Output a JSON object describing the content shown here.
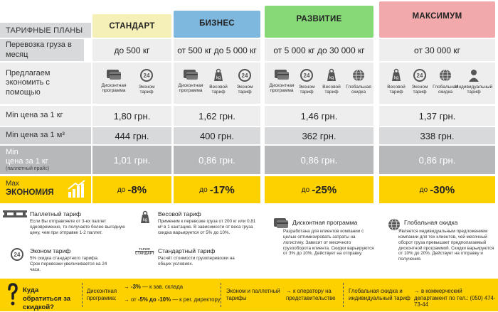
{
  "colors": {
    "standard": "#f5f0b8",
    "business": "#7fb8df",
    "growth": "#87d977",
    "maximum": "#f1a9ab",
    "yellow": "#fdd000"
  },
  "header": {
    "title": "ТАРИФНЫЕ ПЛАНЫ"
  },
  "plans": [
    {
      "name": "СТАНДАРТ",
      "volume": "до 500 кг",
      "kg": "1,80 грн.",
      "m3": "444 грн.",
      "pallet": "1,01 грн.",
      "disc_pre": "до",
      "disc": "-8%"
    },
    {
      "name": "БИЗНЕС",
      "volume": "от 500 кг до 5 000 кг",
      "kg": "1,62 грн.",
      "m3": "400 грн.",
      "pallet": "0,86 грн.",
      "disc_pre": "до",
      "disc": "-17%"
    },
    {
      "name": "РАЗВИТИЕ",
      "volume": "от 5 000 кг до 30 000 кг",
      "kg": "1,46 грн.",
      "m3": "362 грн.",
      "pallet": "0,86 грн.",
      "disc_pre": "до",
      "disc": "-25%"
    },
    {
      "name": "МАКСИМУМ",
      "volume": "от 30 000 кг",
      "kg": "1,37 грн.",
      "m3": "338 грн.",
      "pallet": "0,86 грн.",
      "disc_pre": "до",
      "disc": "-30%"
    }
  ],
  "rows": {
    "volume": "Перевозка груза в месяц",
    "offer": "Предлагаем экономить с помощью",
    "kg": "Min цена за 1 кг",
    "m3": "Min цена за 1 м³",
    "pallet_a": "Min",
    "pallet_b": "цена за 1 кг",
    "pallet_c": "(паллетный прайс)",
    "max_a": "Max",
    "max_b": "ЭКОНОМИЯ"
  },
  "icons": {
    "discount": "Дисконтная программа",
    "econom": "Эконом тариф",
    "weight": "Весовой тариф",
    "global": "Глобальная скидка",
    "individual": "Индивидуальный тариф"
  },
  "legend": {
    "pallet_title": "Паллетный тариф",
    "pallet_text": "Если Вы отправляете от 3-ех паллет одновременно, то получаете более выгодную цену, чем при отправке 1-2 паллет.",
    "econom_title": "Эконом тариф",
    "econom_text": "5% скидка стандартного тарифа. Срок перевозки увеличивается на 24 часа.",
    "weight_title": "Весовой тариф",
    "weight_text": "Применим к перевозке груза от 200 кг или 0,81 м³ в 1 кантацию. В зависимости от веса груза скидка варьируется от 5% до 10%.",
    "standard_title": "Стандартный тариф",
    "standard_text": "Расчёт стоимости грузоперевозки на общих условиях.",
    "standard_badge_a": "ТАРИФ",
    "standard_badge_b": "СТАНДАРТ",
    "discount_title": "Дисконтная программа",
    "discount_text": "Разработана для клиентов компании с целью оптимизировать затраты на логистику. Зависит от месячного грузооборота клиента. Скидки варьируются от 3% до 10%. Действует на отправку.",
    "global_title": "Глобальная скидка",
    "global_text": "Является индивидуальным предложением компании для тех клиентов, чей месячный оборот груза превышает предполагаемый дисконтной программой. Скидки варьируются от 10% до 20%. Действует на отправку и получения."
  },
  "footer": {
    "question": "Куда обратиться за скидкой?",
    "discount_label": "Дисконтная программа:",
    "opt1_val": "-3%",
    "opt1_text": "— к зав. склада",
    "opt2_pre": "от",
    "opt2_val": "-5% до -10%",
    "opt2_text": "— к рег. директору",
    "econom_label": "Эконом и паллетный тарифы",
    "econom_target": "к оператору на представительстве",
    "global_label": "Глобальная скидка и индивидуальный тариф",
    "global_target": "в коммерческий департамент по тел.: (050) 474-73-44"
  }
}
